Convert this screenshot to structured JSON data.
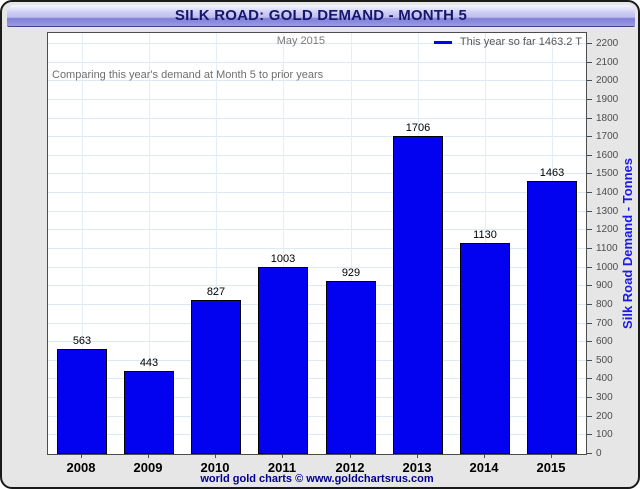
{
  "header": {
    "title": "SILK ROAD: GOLD DEMAND - MONTH 5"
  },
  "chart_data": {
    "type": "bar",
    "title": "SILK ROAD: GOLD DEMAND - MONTH 5",
    "subtitle": "May 2015",
    "annotation": "Comparing this year's demand at Month 5 to prior years",
    "legend": {
      "label": "This year so far 1463.2 T",
      "marker_color": "#0202f0",
      "position": "top-right"
    },
    "categories": [
      "2008",
      "2009",
      "2010",
      "2011",
      "2012",
      "2013",
      "2014",
      "2015"
    ],
    "values": [
      563,
      443,
      827,
      1003,
      929,
      1706,
      1130,
      1463
    ],
    "xlabel": "",
    "ylabel": "Silk Road Demand - Tonnes",
    "ylim": [
      0,
      2200
    ],
    "ytick_step": 100,
    "grid": true,
    "bar_color": "#0202f0",
    "credit": "world gold charts © www.goldchartsrus.com"
  },
  "colors": {
    "bar": "#0202f0",
    "titlebar_text": "#16166e",
    "axis_title": "#1a1aee",
    "credit_text": "#00008b",
    "panel_background": "#e6e6e6",
    "gridline": "#dceaf6"
  }
}
